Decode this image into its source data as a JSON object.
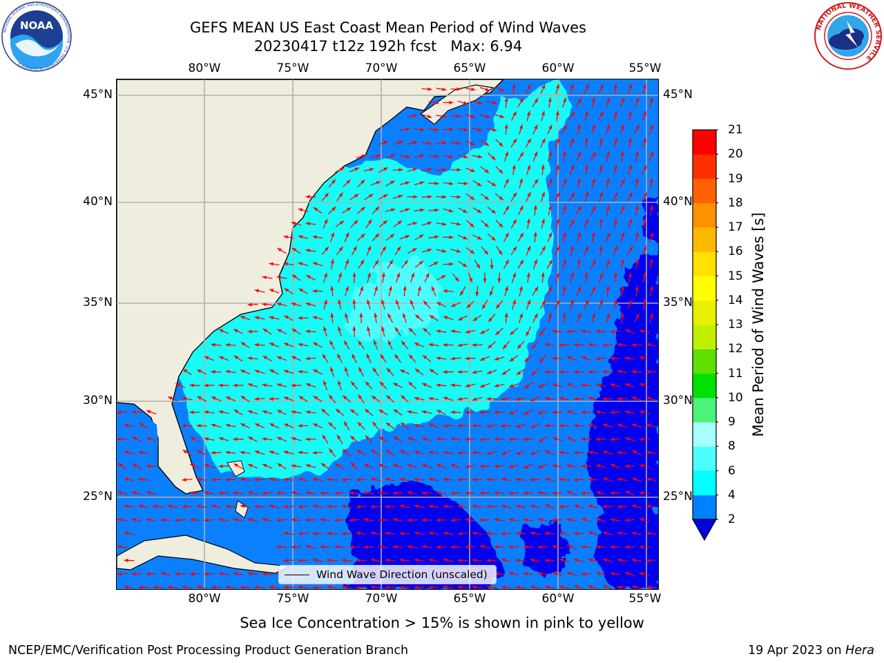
{
  "header": {
    "title_line1": "GEFS MEAN US East Coast Mean Period of Wind Waves",
    "title_line2": "20230417 t12z 192h fcst   Max: 6.94"
  },
  "logos": {
    "left": {
      "text": "NOAA",
      "ring_text": "NATIONAL OCEANIC AND ATMOSPHERIC ADMINISTRATION · U.S. DEPARTMENT OF COMMERCE"
    },
    "right": {
      "ring_text": "NATIONAL WEATHER SERVICE"
    }
  },
  "map": {
    "lon_labels": [
      "80°W",
      "75°W",
      "70°W",
      "65°W",
      "60°W",
      "55°W"
    ],
    "lat_labels": [
      "45°N",
      "40°N",
      "35°N",
      "30°N",
      "25°N"
    ],
    "legend_label": "Wind Wave Direction (unscaled)",
    "colors": {
      "land": "#efedde",
      "period_2_4": "#0a80ff",
      "period_4_6": "#12fbf6",
      "period_6_8": "#4cffff",
      "period_below_2": "#0000f0",
      "arrow": "#ff0000",
      "grid": "#b0b0b0"
    }
  },
  "colorbar": {
    "title": "Mean Period of Wind Waves [s]",
    "tick_labels": [
      "2",
      "4",
      "6",
      "8",
      "9",
      "10",
      "11",
      "12",
      "13",
      "14",
      "15",
      "16",
      "17",
      "18",
      "19",
      "20",
      "21"
    ],
    "bins": [
      {
        "from": 2,
        "to": 4,
        "color": "#0080ff"
      },
      {
        "from": 4,
        "to": 6,
        "color": "#00ffff"
      },
      {
        "from": 6,
        "to": 8,
        "color": "#4cffff"
      },
      {
        "from": 8,
        "to": 9,
        "color": "#a8ffff"
      },
      {
        "from": 9,
        "to": 10,
        "color": "#4cf27a"
      },
      {
        "from": 10,
        "to": 11,
        "color": "#00e000"
      },
      {
        "from": 11,
        "to": 12,
        "color": "#60e000"
      },
      {
        "from": 12,
        "to": 13,
        "color": "#c0f000"
      },
      {
        "from": 13,
        "to": 14,
        "color": "#e8f000"
      },
      {
        "from": 14,
        "to": 15,
        "color": "#ffff00"
      },
      {
        "from": 15,
        "to": 16,
        "color": "#ffe000"
      },
      {
        "from": 16,
        "to": 17,
        "color": "#ffb800"
      },
      {
        "from": 17,
        "to": 18,
        "color": "#ff9000"
      },
      {
        "from": 18,
        "to": 19,
        "color": "#ff6000"
      },
      {
        "from": 19,
        "to": 20,
        "color": "#ff3000"
      },
      {
        "from": 20,
        "to": 21,
        "color": "#ff0000"
      }
    ],
    "under_color": "#0000e0"
  },
  "subtitle": "Sea Ice Concentration > 15% is shown in pink to yellow",
  "footer": {
    "left": "NCEP/EMC/Verification Post Processing Product Generation Branch",
    "date": "19 Apr 2023 on",
    "host": "Hera"
  }
}
